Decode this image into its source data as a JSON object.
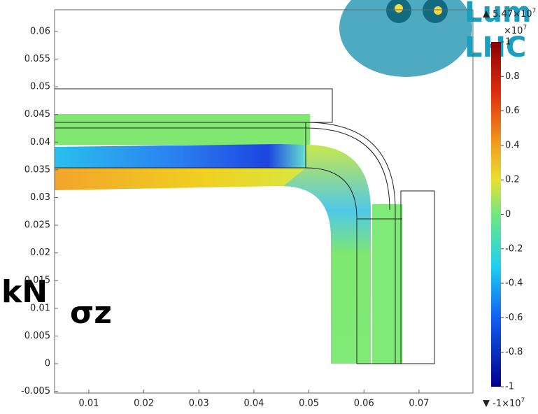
{
  "chart_data": {
    "type": "field",
    "xlim": [
      0.00378,
      0.0798
    ],
    "ylim": [
      -0.0053,
      0.0639
    ],
    "xticks": [
      0.01,
      0.02,
      0.03,
      0.04,
      0.05,
      0.06,
      0.07
    ],
    "yticks": [
      -0.005,
      0,
      0.005,
      0.01,
      0.015,
      0.02,
      0.025,
      0.03,
      0.035,
      0.04,
      0.045,
      0.05,
      0.055,
      0.06
    ],
    "colorbar": {
      "lim": [
        -1,
        1
      ],
      "ticks": [
        1,
        0.8,
        0.6,
        0.4,
        0.2,
        0,
        -0.2,
        -0.4,
        -0.6,
        -0.8,
        -1
      ],
      "exponent": "×10",
      "exponent_power": "7",
      "max_label": "5.47×10",
      "max_power": "7",
      "min_label": "-1×10",
      "min_power": "7"
    },
    "annotations": [
      "kN",
      "σz"
    ],
    "logo": [
      "Lum",
      "LHC"
    ]
  }
}
